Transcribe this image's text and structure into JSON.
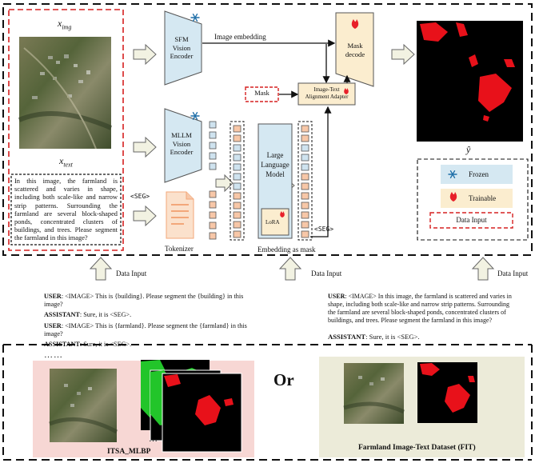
{
  "top": {
    "x_img_label": "x",
    "x_img_sub": "img",
    "x_text_label": "x",
    "x_text_sub": "text",
    "question_text": "In this image, the farmland is scattered and varies in shape, including both scale-like and narrow strip patterns. Surrounding the farmland are several block-shaped ponds, concentrated clusters of buildings, and trees. Please segment the farmland in this image?",
    "seg_token_left": "<SEG>",
    "seg_token_right": "<SEG>",
    "sfm_encoder": [
      "SFM",
      "Vision",
      "Encoder"
    ],
    "mllm_encoder": [
      "MLLM",
      "Vision",
      "Encoder"
    ],
    "image_embedding": "Image embedding",
    "mask_decode": [
      "Mask",
      "decode"
    ],
    "mask_input": "Mask",
    "adapter": [
      "Image-Text",
      "Alignment Adapter"
    ],
    "llm": [
      "Large",
      "Language",
      "Model"
    ],
    "lora": "LoRA",
    "tokenizer": "Tokenizer",
    "embedding_as_mask": "Embedding as mask",
    "y_hat": "ŷ"
  },
  "legend": {
    "frozen": "Frozen",
    "trainable": "Trainable",
    "data_input": "Data Input"
  },
  "connectors": {
    "left": "Data Input",
    "middle": "Data Input",
    "right": "Data Input"
  },
  "bottom_left": {
    "lines": [
      {
        "speaker": "USER",
        "text": ": <IMAGE> This is {building}. Please segment the {building} in this image?"
      },
      {
        "speaker": "ASSISTANT",
        "text": ": Sure, it is <SEG>."
      },
      {
        "speaker": "USER",
        "text": ": <IMAGE> This is {farmland}. Please segment the {farmland} in this image?"
      },
      {
        "speaker": "ASSISTANT",
        "text": ": Sure, it is <SEG>."
      }
    ],
    "ellipsis": "……",
    "ellipsis2": "…",
    "caption": "ITSA_MLBP"
  },
  "or_label": "Or",
  "bottom_right": {
    "user_speaker": "USER",
    "user_text": ": <IMAGE> In this image, the farmland is scattered and varies in shape, including both scale-like and narrow strip patterns. Surrounding the farmland are several block-shaped ponds, concentrated clusters of buildings, and trees. Please segment the farmland in this image?",
    "assistant_speaker": "ASSISTANT",
    "assistant_text": ": Sure, it is <SEG>.",
    "caption": "Farmland Image-Text Dataset (FIT)"
  },
  "colors": {
    "frozen": "#d5e8f2",
    "trainable": "#fbedcf",
    "red_dash": "#d62020",
    "pink_panel": "#f7d7d4",
    "green_panel": "#ecebd9",
    "token_blue": "#cfe3ef",
    "token_orange": "#f7c7a8",
    "mask_red": "#e8111a"
  },
  "icons": {
    "frozen": "snowflake-icon",
    "trainable": "flame-icon",
    "tokenizer": "document-icon"
  }
}
